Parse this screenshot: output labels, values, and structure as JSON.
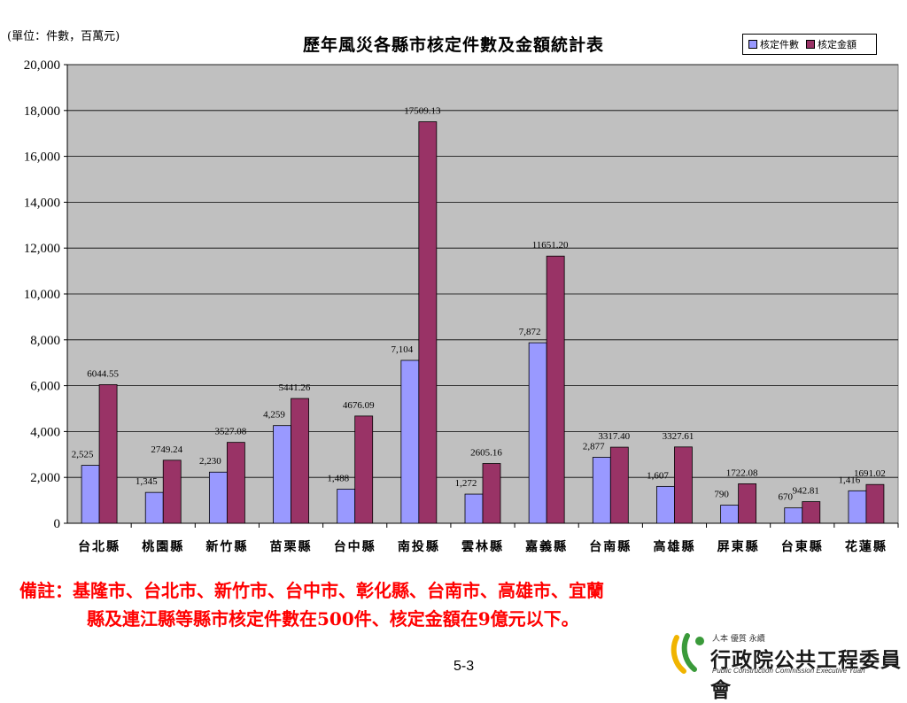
{
  "unit_label": "(單位：件數，百萬元)",
  "page_number": "5-3",
  "note": {
    "line1": "備註：基隆市、台北市、新竹市、台中市、彰化縣、台南市、高雄市、宜蘭",
    "line2": "縣及連江縣等縣市核定件數在500件、核定金額在9億元以下。"
  },
  "logo": {
    "small_text": "人本 優質 永續",
    "name": "行政院公共工程委員會",
    "english": "Public Construction Commission Executive Yuan"
  },
  "colors": {
    "count_series": "#9999ff",
    "amount_series": "#993366",
    "plot_background": "#c0c0c0",
    "note_text": "#ff0000"
  },
  "chart_data": {
    "type": "bar",
    "title": "歷年風災各縣市核定件數及金額統計表",
    "categories": [
      "台北縣",
      "桃園縣",
      "新竹縣",
      "苗栗縣",
      "台中縣",
      "南投縣",
      "雲林縣",
      "嘉義縣",
      "台南縣",
      "高雄縣",
      "屏東縣",
      "台東縣",
      "花蓮縣"
    ],
    "series": [
      {
        "name": "核定件數",
        "values": [
          2525,
          1345,
          2230,
          4259,
          1488,
          7104,
          1272,
          7872,
          2877,
          1607,
          790,
          670,
          1416
        ],
        "labels": [
          "2,525",
          "1,345",
          "2,230",
          "4,259",
          "1,488",
          "7,104",
          "1,272",
          "7,872",
          "2,877",
          "1,607",
          "790",
          "670",
          "1,416"
        ]
      },
      {
        "name": "核定金額",
        "values": [
          6044.55,
          2749.24,
          3527.08,
          5441.26,
          4676.09,
          17509.13,
          2605.16,
          11651.2,
          3317.4,
          3327.61,
          1722.08,
          942.81,
          1691.02
        ],
        "labels": [
          "6044.55",
          "2749.24",
          "3527.08",
          "5441.26",
          "4676.09",
          "17509.13",
          "2605.16",
          "11651.20",
          "3317.40",
          "3327.61",
          "1722.08",
          "942.81",
          "1691.02"
        ]
      }
    ],
    "ylim": [
      0,
      20000
    ],
    "yticks": [
      0,
      2000,
      4000,
      6000,
      8000,
      10000,
      12000,
      14000,
      16000,
      18000,
      20000
    ],
    "ytick_labels": [
      "0",
      "2,000",
      "4,000",
      "6,000",
      "8,000",
      "10,000",
      "12,000",
      "14,000",
      "16,000",
      "18,000",
      "20,000"
    ],
    "grid": true,
    "legend_position": "top-right"
  }
}
